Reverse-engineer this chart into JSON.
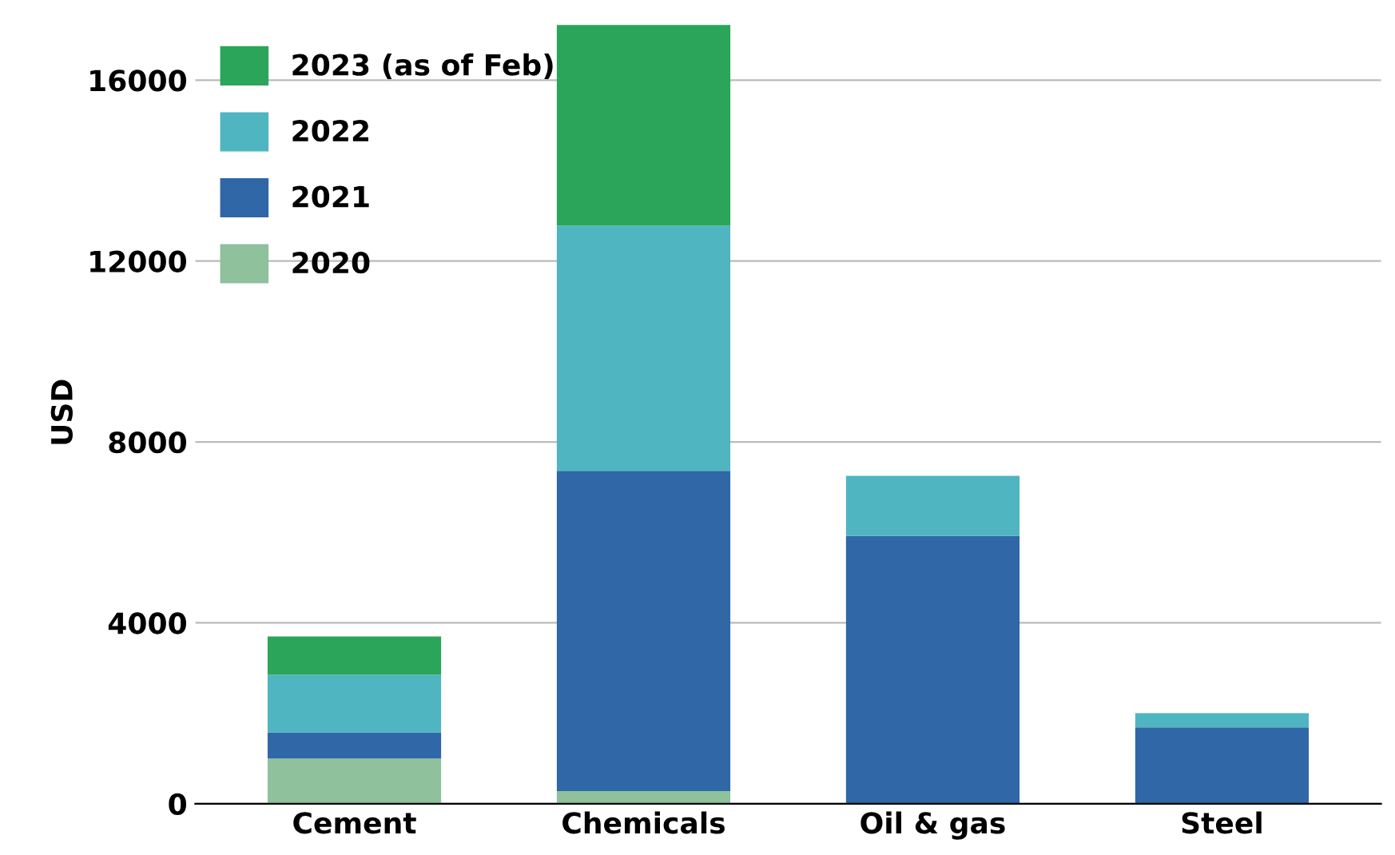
{
  "chart_data": {
    "type": "bar",
    "stacked": true,
    "ylabel": "USD",
    "categories": [
      "Cement",
      "Chemicals",
      "Oil & gas",
      "Steel"
    ],
    "series": [
      {
        "name": "2020",
        "color": "#8fc19d",
        "values": [
          1000,
          280,
          null,
          null
        ]
      },
      {
        "name": "2021",
        "color": "#2f67a7",
        "values": [
          580,
          7080,
          5920,
          1690
        ]
      },
      {
        "name": "2022",
        "color": "#4fb5c1",
        "values": [
          1270,
          5420,
          1330,
          310
        ]
      },
      {
        "name": "2023 (as of Feb)",
        "color": "#2ba55a",
        "values": [
          850,
          4440,
          null,
          null
        ]
      }
    ],
    "ylim": [
      0,
      17300
    ],
    "yticks": [
      0,
      4000,
      8000,
      12000,
      16000
    ],
    "grid": "y",
    "legend": "top left"
  }
}
